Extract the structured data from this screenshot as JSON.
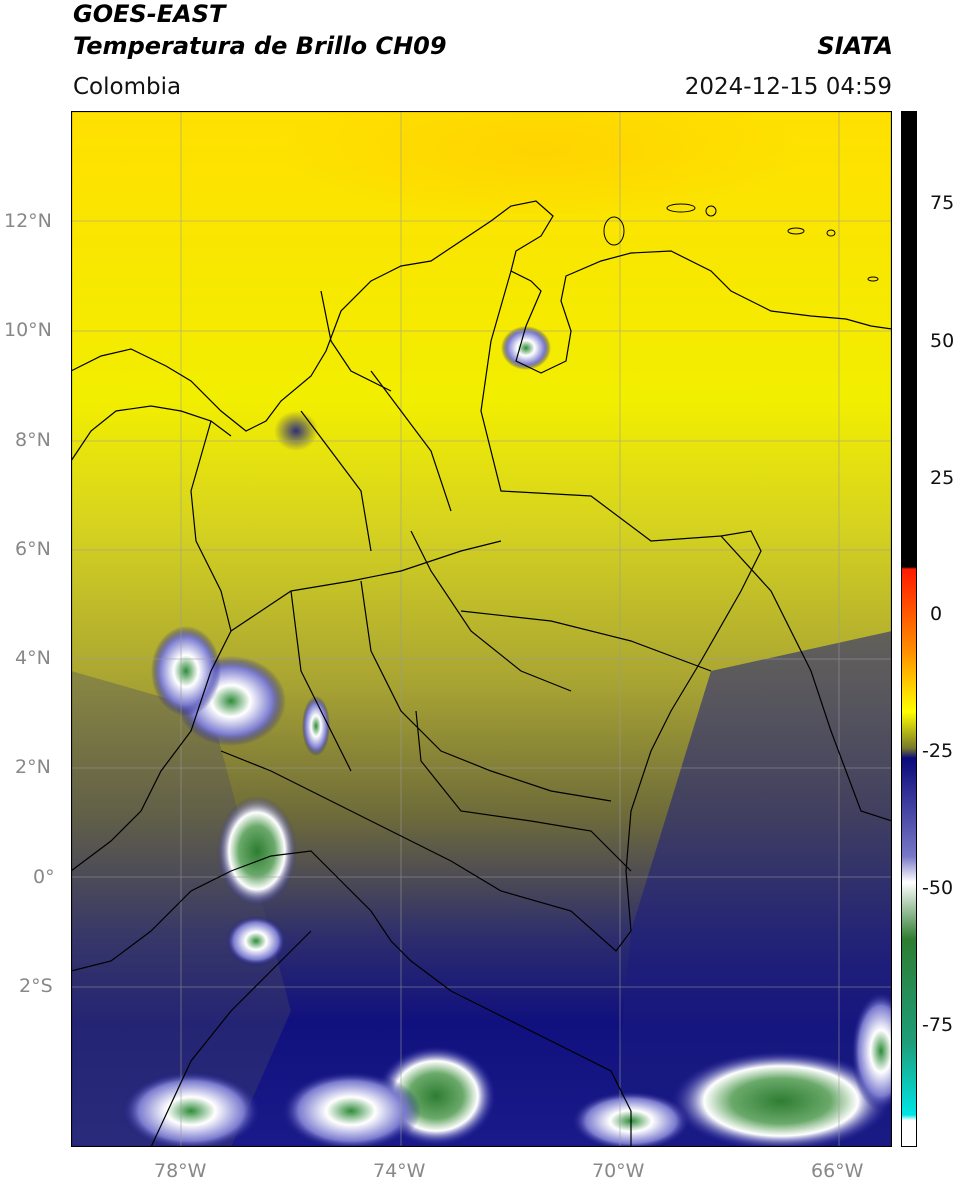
{
  "header": {
    "satellite": "GOES-EAST",
    "product": "Temperatura de Brillo CH09",
    "region": "Colombia",
    "agency": "SIATA",
    "datetime": "2024-12-15 04:59"
  },
  "axes": {
    "lon_ticks": [
      "78°W",
      "74°W",
      "70°W",
      "66°W"
    ],
    "lat_ticks": [
      "12°N",
      "10°N",
      "8°N",
      "6°N",
      "4°N",
      "2°N",
      "0°",
      "2°S"
    ]
  },
  "colorbar": {
    "ticks": [
      "75",
      "50",
      "25",
      "0",
      "-25",
      "-50",
      "-75"
    ],
    "colors": {
      "hot": "#000000",
      "warm_red": "#ff1a00",
      "orange": "#ff8c00",
      "yellow": "#ffff00",
      "olive": "#7a7a2a",
      "navy": "#0a0a7a",
      "white": "#ffffff",
      "green": "#2e7d32",
      "cyan": "#00e5e5"
    }
  }
}
